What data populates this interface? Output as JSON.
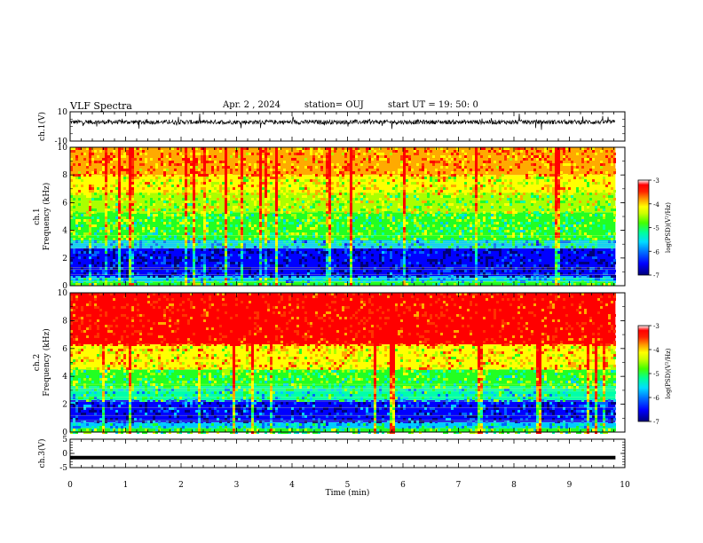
{
  "header": {
    "title": "VLF Spectra",
    "date": "Apr. 2 , 2024",
    "station": "station= OUJ",
    "start": "start UT = 19: 50: 0"
  },
  "colors": {
    "axis": "#000000",
    "colormap": [
      "#00007a",
      "#0000ff",
      "#0066ff",
      "#00ccff",
      "#00ffaa",
      "#22ff22",
      "#aaff00",
      "#ffff00",
      "#ffaa00",
      "#ff3300",
      "#ff0000",
      "#ffffff"
    ]
  },
  "chart_data": [
    {
      "id": "ch1-waveform",
      "type": "line",
      "ylabel": "ch.1(V)",
      "ylim": [
        -10,
        10
      ],
      "yticks": [
        "10",
        "-10"
      ],
      "xlim": [
        0,
        10
      ],
      "baseline": 3,
      "noise_amplitude": 1.5
    },
    {
      "id": "ch1-spectrogram",
      "type": "heatmap",
      "ylabel": "ch.1 Frequency (kHz)",
      "ylim": [
        0,
        10
      ],
      "yticks": [
        "0",
        "2",
        "4",
        "6",
        "8",
        "10"
      ],
      "xlim": [
        0,
        9.83
      ],
      "bands": [
        {
          "from": 0,
          "to": 0.3,
          "level": -5.0
        },
        {
          "from": 0.3,
          "to": 0.7,
          "level": -5.6
        },
        {
          "from": 0.7,
          "to": 2.7,
          "level": -6.6
        },
        {
          "from": 2.7,
          "to": 3.3,
          "level": -5.6
        },
        {
          "from": 3.3,
          "to": 5.3,
          "level": -5.0
        },
        {
          "from": 5.3,
          "to": 6.7,
          "level": -4.6
        },
        {
          "from": 6.7,
          "to": 8.0,
          "level": -4.3
        },
        {
          "from": 8.0,
          "to": 10,
          "level": -3.8
        }
      ],
      "colorbar": {
        "label": "log(PSD)(V²/Hz)",
        "range": [
          -7,
          -3
        ],
        "ticks": [
          "-3",
          "-4",
          "-5",
          "-6",
          "-7"
        ]
      }
    },
    {
      "id": "ch2-spectrogram",
      "type": "heatmap",
      "ylabel": "ch.2 Frequency (kHz)",
      "ylim": [
        0,
        10
      ],
      "yticks": [
        "0",
        "2",
        "4",
        "6",
        "8",
        "10"
      ],
      "xlim": [
        0,
        9.83
      ],
      "bands": [
        {
          "from": 0,
          "to": 0.3,
          "level": -5.0
        },
        {
          "from": 0.3,
          "to": 0.7,
          "level": -5.6
        },
        {
          "from": 0.7,
          "to": 2.3,
          "level": -6.4
        },
        {
          "from": 2.3,
          "to": 3.3,
          "level": -5.4
        },
        {
          "from": 3.3,
          "to": 4.5,
          "level": -5.0
        },
        {
          "from": 4.5,
          "to": 6.3,
          "level": -4.2
        },
        {
          "from": 6.3,
          "to": 10,
          "level": -3.2
        }
      ],
      "colorbar": {
        "label": "log(PSD)(V²/Hz)",
        "range": [
          -7,
          -3
        ],
        "ticks": [
          "-3",
          "-4",
          "-5",
          "-6",
          "-7"
        ]
      }
    },
    {
      "id": "ch3-waveform",
      "type": "line",
      "ylabel": "ch.3(V)",
      "ylim": [
        -5,
        5
      ],
      "yticks": [
        "5",
        "0",
        "-5"
      ],
      "xlim": [
        0,
        10
      ],
      "baseline": -1.5,
      "noise_amplitude": 0
    }
  ],
  "xaxis": {
    "label": "Time (min)",
    "ticks": [
      "0",
      "1",
      "2",
      "3",
      "4",
      "5",
      "6",
      "7",
      "8",
      "9",
      "10"
    ]
  }
}
